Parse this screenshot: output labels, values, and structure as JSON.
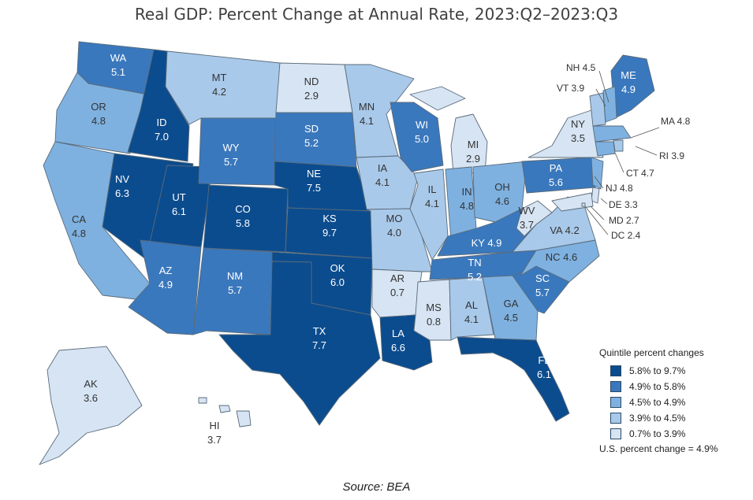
{
  "title": "Real GDP: Percent Change at Annual Rate, 2023:Q2–2023:Q3",
  "source": "Source: BEA",
  "colors": {
    "q1": "#0b4c8e",
    "q2": "#3a78bd",
    "q3": "#7eb1e0",
    "q4": "#a9c9ea",
    "q5": "#d6e4f3"
  },
  "legend": {
    "title": "Quintile percent changes",
    "items": [
      {
        "label": "5.8% to 9.7%",
        "color": "#0b4c8e"
      },
      {
        "label": "4.9% to 5.8%",
        "color": "#3a78bd"
      },
      {
        "label": "4.5% to 4.9%",
        "color": "#7eb1e0"
      },
      {
        "label": "3.9% to 4.5%",
        "color": "#a9c9ea"
      },
      {
        "label": "0.7% to 3.9%",
        "color": "#d6e4f3"
      }
    ],
    "us_total": "U.S. percent change = 4.9%"
  },
  "states": [
    {
      "abbr": "WA",
      "value": "5.1"
    },
    {
      "abbr": "OR",
      "value": "4.8"
    },
    {
      "abbr": "CA",
      "value": "4.8"
    },
    {
      "abbr": "ID",
      "value": "7.0"
    },
    {
      "abbr": "NV",
      "value": "6.3"
    },
    {
      "abbr": "UT",
      "value": "6.1"
    },
    {
      "abbr": "AZ",
      "value": "4.9"
    },
    {
      "abbr": "MT",
      "value": "4.2"
    },
    {
      "abbr": "WY",
      "value": "5.7"
    },
    {
      "abbr": "CO",
      "value": "5.8"
    },
    {
      "abbr": "NM",
      "value": "5.7"
    },
    {
      "abbr": "ND",
      "value": "2.9"
    },
    {
      "abbr": "SD",
      "value": "5.2"
    },
    {
      "abbr": "NE",
      "value": "7.5"
    },
    {
      "abbr": "KS",
      "value": "9.7"
    },
    {
      "abbr": "OK",
      "value": "6.0"
    },
    {
      "abbr": "TX",
      "value": "7.7"
    },
    {
      "abbr": "MN",
      "value": "4.1"
    },
    {
      "abbr": "IA",
      "value": "4.1"
    },
    {
      "abbr": "MO",
      "value": "4.0"
    },
    {
      "abbr": "AR",
      "value": "0.7"
    },
    {
      "abbr": "LA",
      "value": "6.6"
    },
    {
      "abbr": "WI",
      "value": "5.0"
    },
    {
      "abbr": "IL",
      "value": "4.1"
    },
    {
      "abbr": "MI",
      "value": "2.9"
    },
    {
      "abbr": "IN",
      "value": "4.8"
    },
    {
      "abbr": "OH",
      "value": "4.6"
    },
    {
      "abbr": "KY",
      "value": "4.9"
    },
    {
      "abbr": "TN",
      "value": "5.2"
    },
    {
      "abbr": "MS",
      "value": "0.8"
    },
    {
      "abbr": "AL",
      "value": "4.1"
    },
    {
      "abbr": "GA",
      "value": "4.5"
    },
    {
      "abbr": "FL",
      "value": "6.1"
    },
    {
      "abbr": "SC",
      "value": "5.7"
    },
    {
      "abbr": "NC",
      "value": "4.6"
    },
    {
      "abbr": "VA",
      "value": "4.2"
    },
    {
      "abbr": "WV",
      "value": "3.7"
    },
    {
      "abbr": "PA",
      "value": "5.6"
    },
    {
      "abbr": "NY",
      "value": "3.5"
    },
    {
      "abbr": "ME",
      "value": "4.9"
    },
    {
      "abbr": "NH",
      "value": "4.5"
    },
    {
      "abbr": "VT",
      "value": "3.9"
    },
    {
      "abbr": "MA",
      "value": "4.8"
    },
    {
      "abbr": "RI",
      "value": "3.9"
    },
    {
      "abbr": "CT",
      "value": "4.7"
    },
    {
      "abbr": "NJ",
      "value": "4.8"
    },
    {
      "abbr": "DE",
      "value": "3.3"
    },
    {
      "abbr": "MD",
      "value": "2.7"
    },
    {
      "abbr": "DC",
      "value": "2.4"
    },
    {
      "abbr": "AK",
      "value": "3.6"
    },
    {
      "abbr": "HI",
      "value": "3.7"
    }
  ]
}
